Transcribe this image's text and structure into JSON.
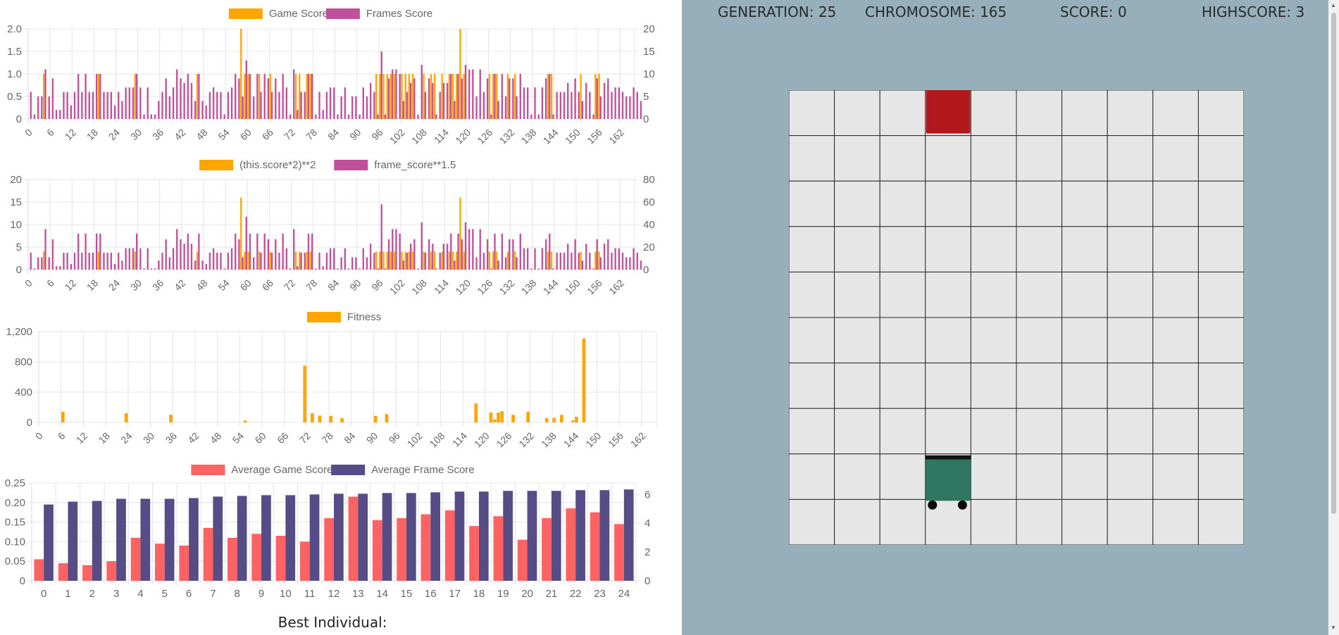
{
  "hud": {
    "generation_label": "GENERATION: 25",
    "chromosome_label": "CHROMOSOME: 165",
    "score_label": "SCORE: 0",
    "highscore_label": "HIGHSCORE: 3"
  },
  "board": {
    "rows": 10,
    "cols": 10,
    "food_cell": [
      0,
      3
    ],
    "agent_cell": [
      8,
      3
    ],
    "cell_color": "#e6e6e6",
    "food_color": "#b3191c",
    "agent_color": "#2e7660"
  },
  "best_individual_label": "Best Individual:",
  "colors": {
    "orange": "#ffa500",
    "purple": "#c0509a",
    "red": "#ff6262",
    "navy": "#574d86"
  },
  "chart_data": [
    {
      "id": "scores",
      "type": "bar",
      "legend": [
        "Game Score",
        "Frames Score"
      ],
      "y_left": {
        "min": 0,
        "max": 2,
        "ticks": [
          "0",
          "0.5",
          "1.0",
          "1.5",
          "2.0"
        ]
      },
      "y_right": {
        "min": 0,
        "max": 20,
        "ticks": [
          "0",
          "5",
          "10",
          "15",
          "20"
        ]
      },
      "x_count": 166,
      "x_ticks": [
        "0",
        "6",
        "12",
        "18",
        "24",
        "30",
        "36",
        "42",
        "48",
        "54",
        "60",
        "66",
        "72",
        "78",
        "84",
        "90",
        "96",
        "102",
        "108",
        "114",
        "120",
        "126",
        "132",
        "138",
        "144",
        "150",
        "156",
        "162"
      ],
      "series": [
        {
          "name": "Game Score",
          "axis": "left",
          "color": "#ffa500",
          "values": [
            0,
            0,
            0,
            0,
            1,
            0,
            0,
            0,
            0,
            0,
            0,
            0,
            0,
            0,
            0,
            0,
            0,
            0,
            0,
            1,
            0,
            0,
            0,
            0,
            0,
            0,
            0,
            0,
            0,
            1,
            0,
            0,
            0,
            0,
            0,
            0,
            0,
            0,
            0,
            0,
            0,
            0,
            0,
            0,
            0,
            0,
            1,
            0,
            0,
            0,
            0,
            0,
            0,
            0,
            0,
            0,
            0,
            0,
            2,
            1,
            1,
            0,
            0,
            1,
            0,
            0,
            1,
            0,
            0,
            0,
            0,
            0,
            0,
            1,
            1,
            0,
            1,
            1,
            0,
            0,
            0,
            0,
            0,
            0,
            0,
            0,
            0,
            0,
            0,
            0,
            0,
            0,
            0,
            0,
            0,
            1,
            1,
            1,
            1,
            1,
            1,
            0,
            1,
            1,
            1,
            1,
            0,
            0,
            1,
            0,
            1,
            1,
            0,
            1,
            0,
            1,
            1,
            1,
            2,
            1,
            0,
            0,
            0,
            0,
            0,
            0,
            1,
            1,
            1,
            0,
            0,
            1,
            0,
            1,
            0,
            0,
            0,
            0,
            0,
            0,
            0,
            0,
            1,
            1,
            0,
            0,
            0,
            0,
            0,
            0,
            0,
            1,
            0,
            0,
            0,
            1,
            1,
            0,
            0,
            0,
            0,
            0,
            0,
            0,
            0,
            0
          ]
        },
        {
          "name": "Frames Score",
          "axis": "right",
          "color": "#c0509a",
          "values": [
            6,
            1,
            5,
            5,
            11,
            5,
            9,
            2,
            2,
            6,
            6,
            3,
            6,
            10,
            6,
            10,
            6,
            6,
            10,
            10,
            6,
            6,
            6,
            3,
            6,
            4,
            7,
            7,
            7,
            10,
            7,
            1,
            7,
            1,
            1,
            4,
            6,
            9,
            5,
            7,
            11,
            9,
            8,
            10,
            8,
            4,
            10,
            4,
            3,
            6,
            7,
            6,
            6,
            1,
            6,
            7,
            10,
            9,
            5,
            13,
            10,
            5,
            10,
            6,
            10,
            9,
            6,
            9,
            6,
            10,
            7,
            1,
            11,
            2,
            6,
            6,
            10,
            10,
            1,
            6,
            2,
            6,
            7,
            7,
            1,
            5,
            7,
            1,
            5,
            5,
            1,
            7,
            5,
            8,
            6,
            1,
            15,
            1,
            9,
            11,
            11,
            10,
            4,
            6,
            8,
            9,
            1,
            12,
            6,
            9,
            8,
            1,
            6,
            8,
            8,
            10,
            4,
            10,
            9,
            12,
            11,
            11,
            5,
            11,
            6,
            9,
            1,
            10,
            4,
            10,
            5,
            9,
            9,
            5,
            10,
            7,
            7,
            1,
            7,
            1,
            7,
            9,
            10,
            1,
            6,
            6,
            6,
            8,
            6,
            9,
            6,
            4,
            8,
            6,
            1,
            9,
            5,
            8,
            9,
            6,
            7,
            7,
            6,
            5,
            5,
            7,
            6,
            4
          ]
        }
      ]
    },
    {
      "id": "transformed",
      "type": "bar",
      "legend": [
        "(this.score*2)**2",
        "frame_score**1.5"
      ],
      "y_left": {
        "min": 0,
        "max": 20,
        "ticks": [
          "0",
          "5",
          "10",
          "15",
          "20"
        ]
      },
      "y_right": {
        "min": 0,
        "max": 80,
        "ticks": [
          "0",
          "20",
          "40",
          "60",
          "80"
        ]
      },
      "x_count": 166,
      "x_ticks": [
        "0",
        "6",
        "12",
        "18",
        "24",
        "30",
        "36",
        "42",
        "48",
        "54",
        "60",
        "66",
        "72",
        "78",
        "84",
        "90",
        "96",
        "102",
        "108",
        "114",
        "120",
        "126",
        "132",
        "138",
        "144",
        "150",
        "156",
        "162"
      ],
      "series": [
        {
          "name": "(this.score*2)**2",
          "axis": "left",
          "color": "#ffa500",
          "values": [
            0,
            0,
            0,
            0,
            4,
            0,
            0,
            0,
            0,
            0,
            0,
            0,
            0,
            0,
            0,
            0,
            0,
            0,
            0,
            4,
            0,
            0,
            0,
            0,
            0,
            0,
            0,
            0,
            0,
            4,
            0,
            0,
            0,
            0,
            0,
            0,
            0,
            0,
            0,
            0,
            0,
            0,
            0,
            0,
            0,
            0,
            4,
            0,
            0,
            0,
            0,
            0,
            0,
            0,
            0,
            0,
            0,
            0,
            16,
            4,
            4,
            0,
            0,
            4,
            0,
            0,
            4,
            0,
            0,
            0,
            0,
            0,
            0,
            4,
            4,
            0,
            4,
            4,
            0,
            0,
            0,
            0,
            0,
            0,
            0,
            0,
            0,
            0,
            0,
            0,
            0,
            0,
            0,
            0,
            0,
            4,
            4,
            4,
            4,
            4,
            4,
            0,
            4,
            4,
            4,
            4,
            0,
            0,
            4,
            0,
            4,
            4,
            0,
            4,
            0,
            4,
            4,
            4,
            16,
            4,
            0,
            0,
            0,
            0,
            0,
            0,
            4,
            4,
            4,
            0,
            0,
            4,
            0,
            4,
            0,
            0,
            0,
            0,
            0,
            0,
            0,
            0,
            4,
            4,
            0,
            0,
            0,
            0,
            0,
            0,
            0,
            4,
            0,
            0,
            0,
            4,
            4,
            0,
            0,
            0,
            0,
            0,
            0,
            0,
            0,
            0
          ]
        },
        {
          "name": "frame_score**1.5",
          "axis": "right",
          "color": "#c0509a",
          "values": [
            15,
            1,
            11,
            11,
            36,
            11,
            27,
            3,
            3,
            15,
            15,
            5,
            15,
            32,
            15,
            32,
            15,
            15,
            32,
            32,
            15,
            15,
            15,
            5,
            15,
            8,
            19,
            19,
            19,
            32,
            19,
            1,
            19,
            1,
            1,
            8,
            15,
            27,
            11,
            19,
            36,
            27,
            23,
            32,
            23,
            8,
            32,
            8,
            5,
            15,
            19,
            15,
            15,
            1,
            15,
            19,
            32,
            27,
            11,
            47,
            32,
            11,
            32,
            15,
            32,
            27,
            15,
            27,
            15,
            32,
            19,
            1,
            36,
            3,
            15,
            15,
            32,
            32,
            1,
            15,
            3,
            15,
            19,
            19,
            1,
            11,
            19,
            1,
            11,
            11,
            1,
            19,
            11,
            23,
            15,
            1,
            58,
            1,
            27,
            36,
            36,
            32,
            8,
            15,
            23,
            27,
            1,
            42,
            15,
            27,
            23,
            1,
            15,
            23,
            23,
            32,
            8,
            32,
            27,
            42,
            36,
            36,
            11,
            36,
            15,
            27,
            1,
            32,
            8,
            32,
            11,
            27,
            27,
            11,
            32,
            19,
            19,
            1,
            19,
            1,
            19,
            27,
            32,
            1,
            15,
            15,
            15,
            23,
            15,
            27,
            15,
            8,
            23,
            15,
            1,
            27,
            11,
            23,
            27,
            15,
            19,
            19,
            15,
            11,
            11,
            19,
            15,
            8
          ]
        }
      ]
    },
    {
      "id": "fitness",
      "type": "bar",
      "legend": [
        "Fitness"
      ],
      "y_left": {
        "min": 0,
        "max": 1200,
        "ticks": [
          "0",
          "400",
          "800",
          "1,200"
        ]
      },
      "x_count": 166,
      "x_ticks": [
        "0",
        "6",
        "12",
        "18",
        "24",
        "30",
        "36",
        "42",
        "48",
        "54",
        "60",
        "66",
        "72",
        "78",
        "84",
        "90",
        "96",
        "102",
        "108",
        "114",
        "120",
        "126",
        "132",
        "138",
        "144",
        "150",
        "156",
        "162"
      ],
      "series": [
        {
          "name": "Fitness",
          "axis": "left",
          "color": "#ffa500",
          "values": [
            0,
            0,
            0,
            0,
            0,
            0,
            140,
            0,
            0,
            0,
            0,
            0,
            0,
            0,
            0,
            0,
            0,
            0,
            0,
            0,
            0,
            0,
            0,
            120,
            0,
            0,
            0,
            0,
            0,
            0,
            0,
            0,
            0,
            0,
            0,
            100,
            0,
            0,
            0,
            0,
            0,
            0,
            0,
            0,
            0,
            0,
            0,
            0,
            0,
            0,
            0,
            0,
            0,
            0,
            0,
            25,
            0,
            0,
            0,
            0,
            0,
            0,
            0,
            0,
            0,
            0,
            0,
            0,
            0,
            0,
            0,
            750,
            0,
            120,
            0,
            90,
            0,
            0,
            85,
            0,
            0,
            55,
            0,
            0,
            0,
            0,
            0,
            0,
            0,
            0,
            85,
            0,
            0,
            110,
            0,
            0,
            0,
            0,
            0,
            0,
            0,
            0,
            0,
            0,
            0,
            0,
            0,
            0,
            0,
            0,
            0,
            0,
            0,
            0,
            0,
            0,
            0,
            250,
            0,
            0,
            0,
            130,
            40,
            130,
            150,
            0,
            0,
            100,
            0,
            0,
            0,
            140,
            0,
            0,
            0,
            0,
            55,
            0,
            60,
            0,
            100,
            0,
            0,
            25,
            75,
            0,
            1110,
            0,
            0,
            0,
            0,
            0,
            0,
            0,
            0,
            0,
            0,
            0,
            0,
            0,
            0,
            0,
            0,
            0,
            0,
            0,
            0,
            0
          ]
        }
      ]
    },
    {
      "id": "averages",
      "type": "bar",
      "legend": [
        "Average Game Score",
        "Average Frame Score"
      ],
      "y_left": {
        "min": 0,
        "max": 0.25,
        "ticks": [
          "0",
          "0.05",
          "0.10",
          "0.15",
          "0.20",
          "0.25"
        ]
      },
      "y_right": {
        "min": 0,
        "max": 6.8,
        "ticks": [
          "0",
          "2",
          "4",
          "6"
        ]
      },
      "categories": [
        "0",
        "1",
        "2",
        "3",
        "4",
        "5",
        "6",
        "7",
        "8",
        "9",
        "10",
        "11",
        "12",
        "13",
        "14",
        "15",
        "16",
        "17",
        "18",
        "19",
        "20",
        "21",
        "22",
        "23",
        "24"
      ],
      "series": [
        {
          "name": "Average Game Score",
          "axis": "left",
          "color": "#ff6262",
          "values": [
            0.055,
            0.045,
            0.04,
            0.05,
            0.11,
            0.095,
            0.09,
            0.135,
            0.11,
            0.12,
            0.115,
            0.1,
            0.16,
            0.215,
            0.155,
            0.16,
            0.17,
            0.18,
            0.14,
            0.165,
            0.105,
            0.16,
            0.185,
            0.175,
            0.145
          ]
        },
        {
          "name": "Average Frame Score",
          "axis": "right",
          "color": "#574d86",
          "values": [
            5.3,
            5.5,
            5.55,
            5.7,
            5.7,
            5.7,
            5.75,
            5.85,
            5.9,
            5.95,
            5.95,
            6.0,
            6.05,
            6.05,
            6.1,
            6.1,
            6.15,
            6.2,
            6.2,
            6.25,
            6.25,
            6.25,
            6.3,
            6.3,
            6.35
          ]
        }
      ]
    }
  ]
}
